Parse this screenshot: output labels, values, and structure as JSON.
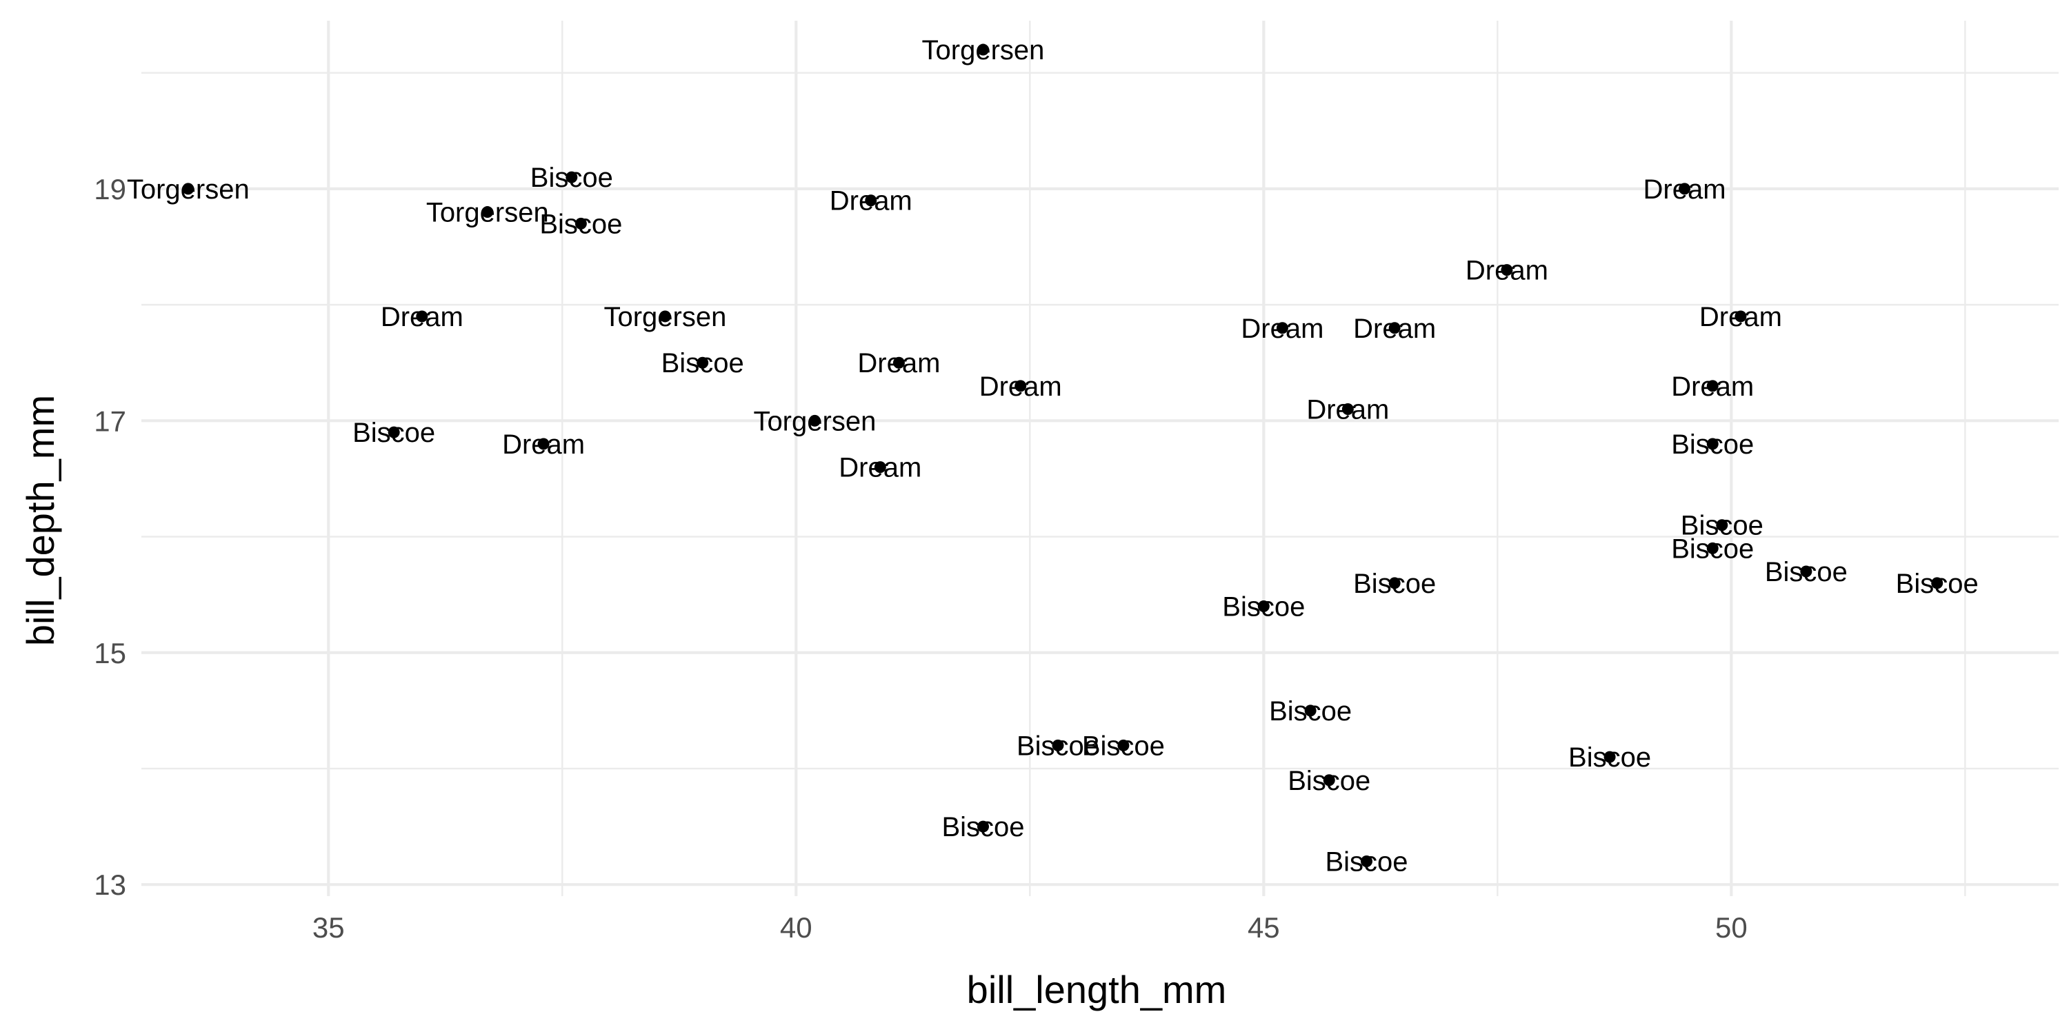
{
  "chart_data": {
    "type": "scatter",
    "title": "",
    "xlabel": "bill_length_mm",
    "ylabel": "bill_depth_mm",
    "xlim": [
      33.0,
      53.5
    ],
    "ylim": [
      12.9,
      20.45
    ],
    "x_ticks": [
      35,
      40,
      45,
      50
    ],
    "y_ticks": [
      13,
      15,
      17,
      19
    ],
    "x_tick_labels": [
      "35",
      "40",
      "45",
      "50"
    ],
    "y_tick_labels": [
      "13",
      "15",
      "17",
      "19"
    ],
    "grid": true,
    "legend": "none",
    "points": [
      {
        "x": 42.0,
        "y": 20.2,
        "label": "Torgersen"
      },
      {
        "x": 33.5,
        "y": 19.0,
        "label": "Torgersen"
      },
      {
        "x": 37.6,
        "y": 19.1,
        "label": "Biscoe"
      },
      {
        "x": 36.7,
        "y": 18.8,
        "label": "Torgersen"
      },
      {
        "x": 37.7,
        "y": 18.7,
        "label": "Biscoe"
      },
      {
        "x": 40.8,
        "y": 18.9,
        "label": "Dream"
      },
      {
        "x": 49.5,
        "y": 19.0,
        "label": "Dream"
      },
      {
        "x": 47.6,
        "y": 18.3,
        "label": "Dream"
      },
      {
        "x": 36.0,
        "y": 17.9,
        "label": "Dream"
      },
      {
        "x": 38.6,
        "y": 17.9,
        "label": "Torgersen"
      },
      {
        "x": 39.0,
        "y": 17.5,
        "label": "Biscoe"
      },
      {
        "x": 41.1,
        "y": 17.5,
        "label": "Dream"
      },
      {
        "x": 42.4,
        "y": 17.3,
        "label": "Dream"
      },
      {
        "x": 45.2,
        "y": 17.8,
        "label": "Dream"
      },
      {
        "x": 46.4,
        "y": 17.8,
        "label": "Dream"
      },
      {
        "x": 50.1,
        "y": 17.9,
        "label": "Dream"
      },
      {
        "x": 49.8,
        "y": 17.3,
        "label": "Dream"
      },
      {
        "x": 35.7,
        "y": 16.9,
        "label": "Biscoe"
      },
      {
        "x": 37.3,
        "y": 16.8,
        "label": "Dream"
      },
      {
        "x": 40.2,
        "y": 17.0,
        "label": "Torgersen"
      },
      {
        "x": 40.9,
        "y": 16.6,
        "label": "Dream"
      },
      {
        "x": 45.9,
        "y": 17.1,
        "label": "Dream"
      },
      {
        "x": 49.8,
        "y": 16.8,
        "label": "Biscoe"
      },
      {
        "x": 49.9,
        "y": 16.1,
        "label": "Biscoe"
      },
      {
        "x": 49.8,
        "y": 15.9,
        "label": "Biscoe"
      },
      {
        "x": 50.8,
        "y": 15.7,
        "label": "Biscoe"
      },
      {
        "x": 52.2,
        "y": 15.6,
        "label": "Biscoe"
      },
      {
        "x": 46.4,
        "y": 15.6,
        "label": "Biscoe"
      },
      {
        "x": 45.0,
        "y": 15.4,
        "label": "Biscoe"
      },
      {
        "x": 45.5,
        "y": 14.5,
        "label": "Biscoe"
      },
      {
        "x": 42.8,
        "y": 14.2,
        "label": "Biscoe"
      },
      {
        "x": 43.5,
        "y": 14.2,
        "label": "Biscoe"
      },
      {
        "x": 48.7,
        "y": 14.1,
        "label": "Biscoe"
      },
      {
        "x": 45.7,
        "y": 13.9,
        "label": "Biscoe"
      },
      {
        "x": 42.0,
        "y": 13.5,
        "label": "Biscoe"
      },
      {
        "x": 46.1,
        "y": 13.2,
        "label": "Biscoe"
      }
    ]
  }
}
